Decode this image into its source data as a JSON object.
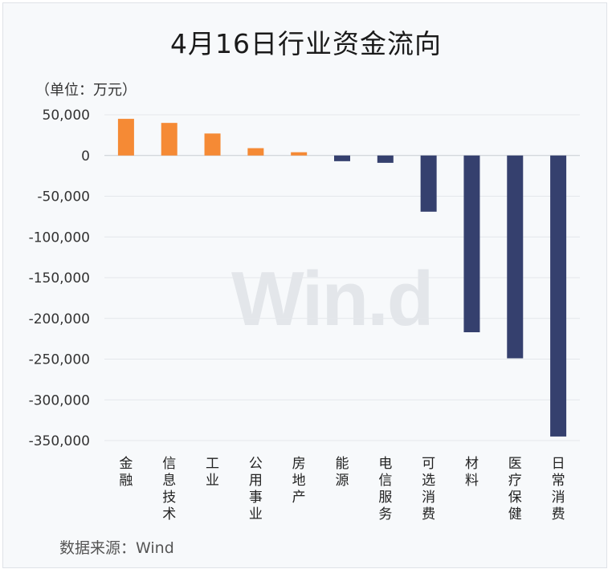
{
  "title": "4月16日行业资金流向",
  "unit_label": "（单位：万元）",
  "source_note": "数据来源：Wind",
  "watermark": "Win.d",
  "colors": {
    "positive": "#f58a35",
    "negative": "#35406e",
    "grid": "#e4e7eb",
    "axis": "#c8ccd2"
  },
  "chart_data": {
    "type": "bar",
    "title": "4月16日行业资金流向",
    "ylabel": "（单位：万元）",
    "xlabel": "",
    "ylim": [
      -350000,
      50000
    ],
    "yticks": [
      50000,
      0,
      -50000,
      -100000,
      -150000,
      -200000,
      -250000,
      -300000,
      -350000
    ],
    "ytick_labels": [
      "50,000",
      "0",
      "-50,000",
      "-100,000",
      "-150,000",
      "-200,000",
      "-250,000",
      "-300,000",
      "-350,000"
    ],
    "categories": [
      "金融",
      "信息技术",
      "工业",
      "公用事业",
      "房地产",
      "能源",
      "电信服务",
      "可选消费",
      "材料",
      "医疗保健",
      "日常消费"
    ],
    "values": [
      45000,
      40000,
      27000,
      9000,
      4000,
      -7000,
      -9000,
      -69000,
      -217000,
      -249000,
      -345000
    ],
    "grid": true,
    "legend": "none"
  }
}
